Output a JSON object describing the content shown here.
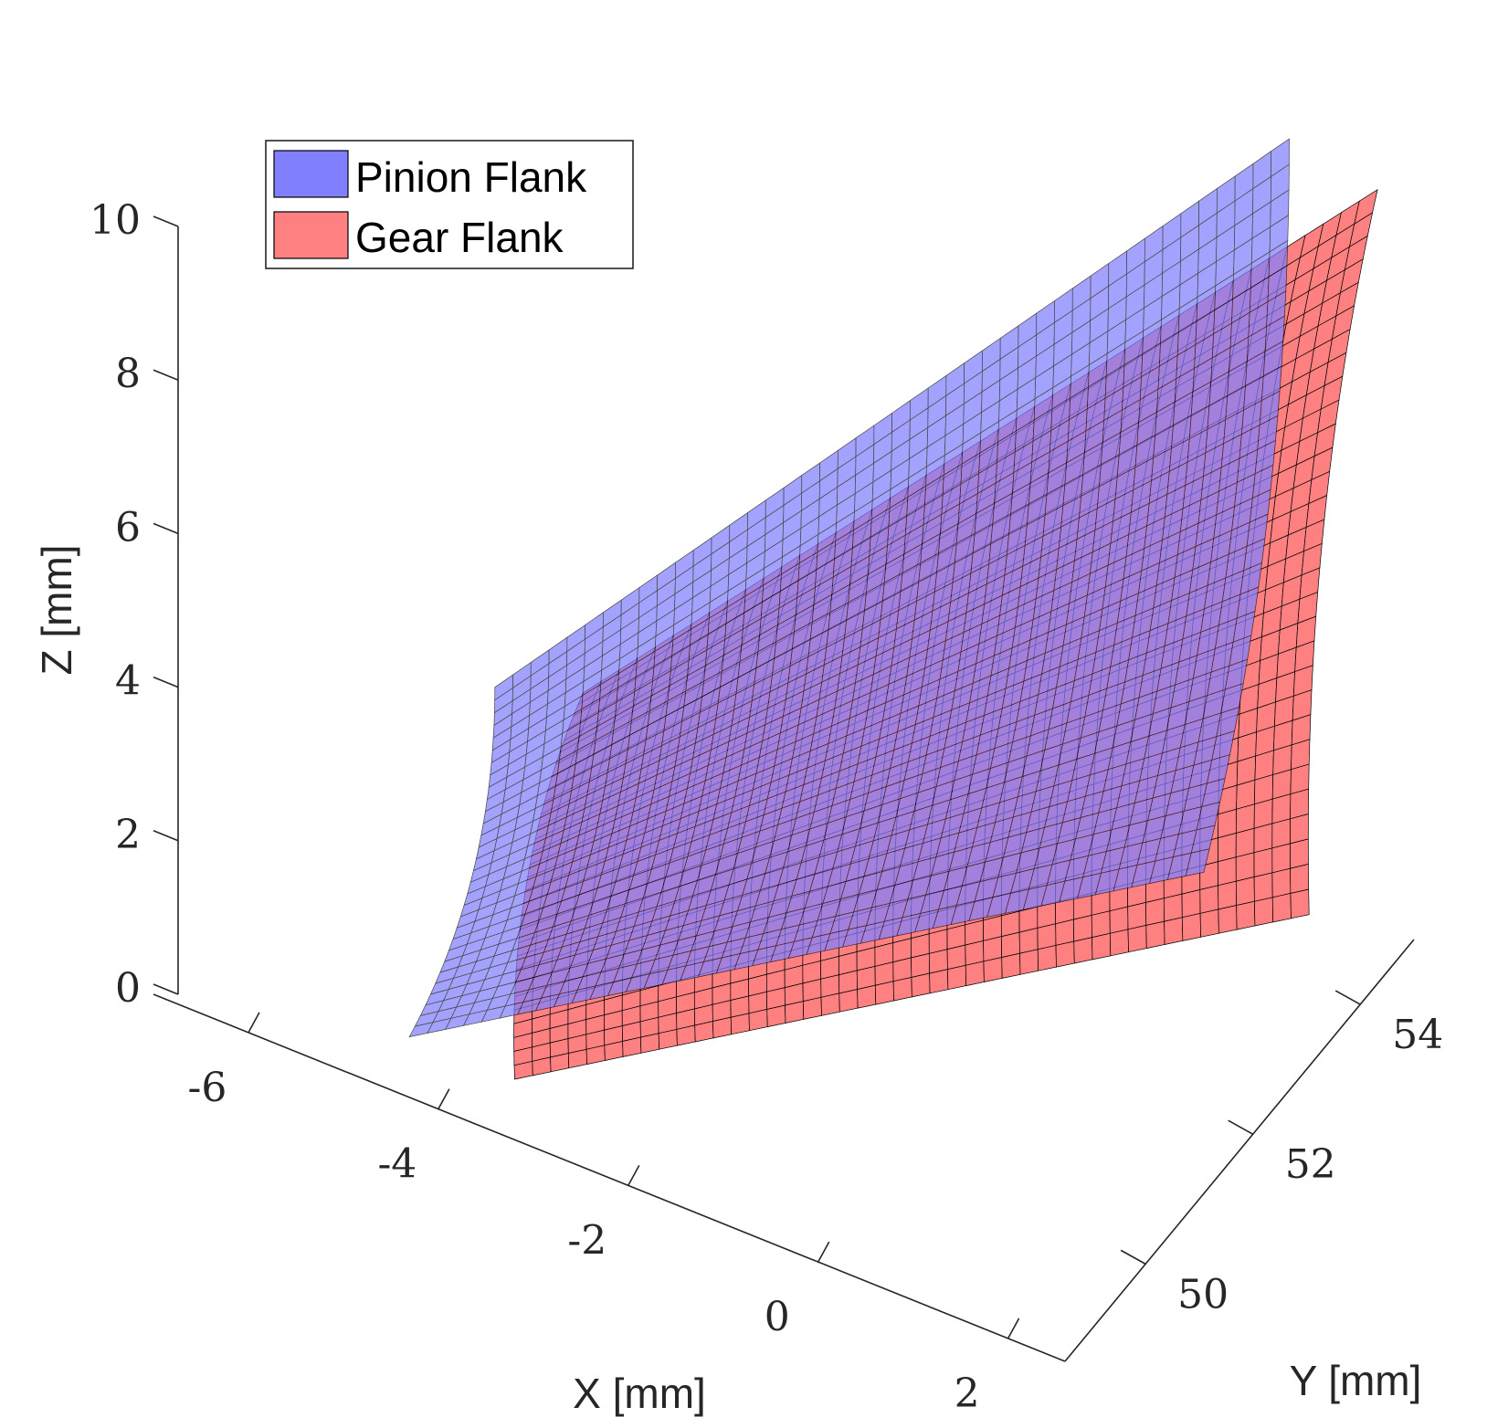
{
  "chart_data": {
    "type": "surface",
    "title": "",
    "xlabel": "X [mm]",
    "ylabel": "Y [mm]",
    "zlabel": "Z [mm]",
    "x_ticks": [
      "-6",
      "-4",
      "-2",
      "0",
      "2"
    ],
    "y_ticks": [
      "50",
      "52",
      "54"
    ],
    "z_ticks": [
      "0",
      "2",
      "4",
      "6",
      "8",
      "10"
    ],
    "xlim": [
      -7,
      2.6
    ],
    "ylim": [
      48.5,
      55
    ],
    "zlim": [
      0,
      10
    ],
    "grid": false,
    "legend_position": "top-left",
    "series": [
      {
        "name": "Pinion Flank",
        "color": "#8080ff",
        "edge_color": "#000000",
        "z_range": [
          0,
          10
        ],
        "y_range": [
          49.2,
          54.8
        ],
        "x_range": [
          -3.8,
          1.4
        ]
      },
      {
        "name": "Gear Flank",
        "color": "#ff8080",
        "edge_color": "#000000",
        "z_range": [
          0,
          9.8
        ],
        "y_range": [
          49.2,
          54.8
        ],
        "x_range": [
          -3.6,
          1.6
        ]
      }
    ]
  }
}
